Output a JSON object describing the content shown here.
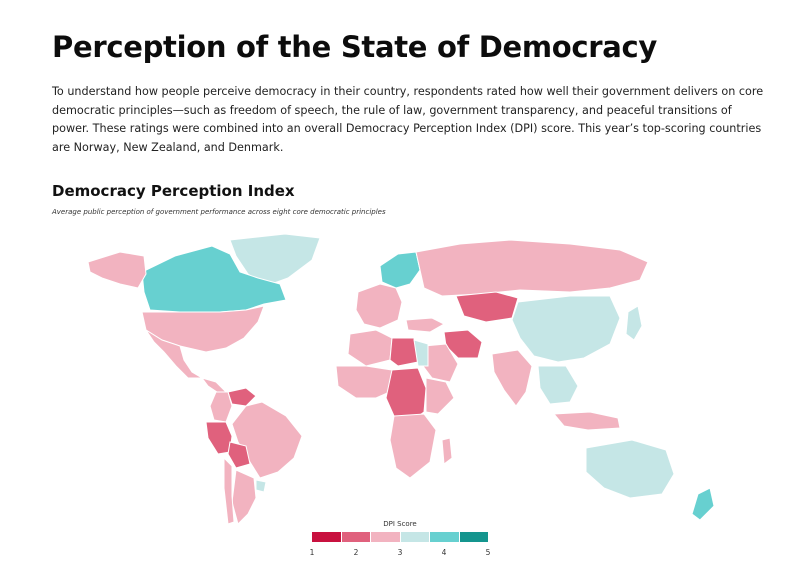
{
  "page": {
    "title": "Perception of the State of Democracy",
    "intro": "To understand how people perceive democracy in their country, respondents rated how well their government delivers on core democratic principles—such as freedom of speech, the rule of law, government transparency, and peaceful transitions of power. These ratings were combined into an overall Democracy Perception Index (DPI) score. This year’s top-scoring countries are Norway, New Zealand, and Denmark."
  },
  "map": {
    "title": "Democracy Perception Index",
    "subtitle": "Average public perception of government performance across eight core democratic principles",
    "scale_min": 1,
    "scale_max": 5,
    "scale_colors": [
      "#c8113f",
      "#e0617d",
      "#f2b3c0",
      "#c5e6e6",
      "#67d0d0",
      "#14958e"
    ],
    "regions": [
      {
        "name": "Greenland",
        "score": 3.0
      },
      {
        "name": "Canada",
        "score": 3.8
      },
      {
        "name": "Alaska",
        "score": 2.7
      },
      {
        "name": "United States",
        "score": 2.7
      },
      {
        "name": "Mexico",
        "score": 2.3
      },
      {
        "name": "Central America",
        "score": 2.2
      },
      {
        "name": "Venezuela",
        "score": 1.9
      },
      {
        "name": "Colombia",
        "score": 2.3
      },
      {
        "name": "Brazil",
        "score": 2.4
      },
      {
        "name": "Peru",
        "score": 2.1
      },
      {
        "name": "Bolivia",
        "score": 2.0
      },
      {
        "name": "Argentina",
        "score": 2.6
      },
      {
        "name": "Chile",
        "score": 2.5
      },
      {
        "name": "Uruguay",
        "score": 3.4
      },
      {
        "name": "Western Europe",
        "score": 2.7
      },
      {
        "name": "Scandinavia",
        "score": 4.0
      },
      {
        "name": "Russia",
        "score": 2.5
      },
      {
        "name": "Kazakhstan",
        "score": 2.0
      },
      {
        "name": "Turkey",
        "score": 2.2
      },
      {
        "name": "Iran",
        "score": 2.1
      },
      {
        "name": "Saudi Arabia",
        "score": 2.9
      },
      {
        "name": "North Africa",
        "score": 2.4
      },
      {
        "name": "Libya",
        "score": 2.0
      },
      {
        "name": "Egypt",
        "score": 3.4
      },
      {
        "name": "West Africa",
        "score": 2.6
      },
      {
        "name": "Central Africa",
        "score": 2.0
      },
      {
        "name": "East Africa",
        "score": 2.3
      },
      {
        "name": "Southern Africa",
        "score": 2.4
      },
      {
        "name": "Madagascar",
        "score": 2.7
      },
      {
        "name": "India",
        "score": 2.4
      },
      {
        "name": "China",
        "score": 3.2
      },
      {
        "name": "Southeast Asia",
        "score": 3.0
      },
      {
        "name": "Indonesia",
        "score": 2.3
      },
      {
        "name": "Japan",
        "score": 3.3
      },
      {
        "name": "Australia",
        "score": 3.1
      },
      {
        "name": "New Zealand",
        "score": 4.0
      }
    ]
  },
  "legend": {
    "title": "DPI Score",
    "ticks": [
      "1",
      "2",
      "3",
      "4",
      "5"
    ]
  }
}
